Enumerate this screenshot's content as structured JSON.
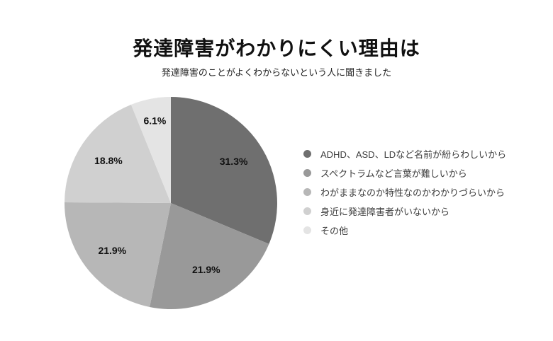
{
  "chart_data": {
    "type": "pie",
    "title": "発達障害がわかりにくい理由は",
    "subtitle": "発達障害のことがよくわからないという人に聞きました",
    "unit": "%",
    "start_angle_deg": 0,
    "direction": "clockwise",
    "legend_position": "right",
    "background_color": "#ffffff",
    "series": [
      {
        "label": "ADHD、ASD、LDなど名前が紛らわしいから",
        "value": 31.3,
        "pct_label": "31.3%",
        "color": "#6f6f6f"
      },
      {
        "label": "スペクトラムなど言葉が難しいから",
        "value": 21.9,
        "pct_label": "21.9%",
        "color": "#999999"
      },
      {
        "label": "わがままなのか特性なのかわかりづらいから",
        "value": 21.9,
        "pct_label": "21.9%",
        "color": "#b7b7b7"
      },
      {
        "label": "身近に発達障害者がいないから",
        "value": 18.8,
        "pct_label": "18.8%",
        "color": "#d0d0d0"
      },
      {
        "label": "その他",
        "value": 6.1,
        "pct_label": "6.1%",
        "color": "#e4e4e4"
      }
    ]
  }
}
